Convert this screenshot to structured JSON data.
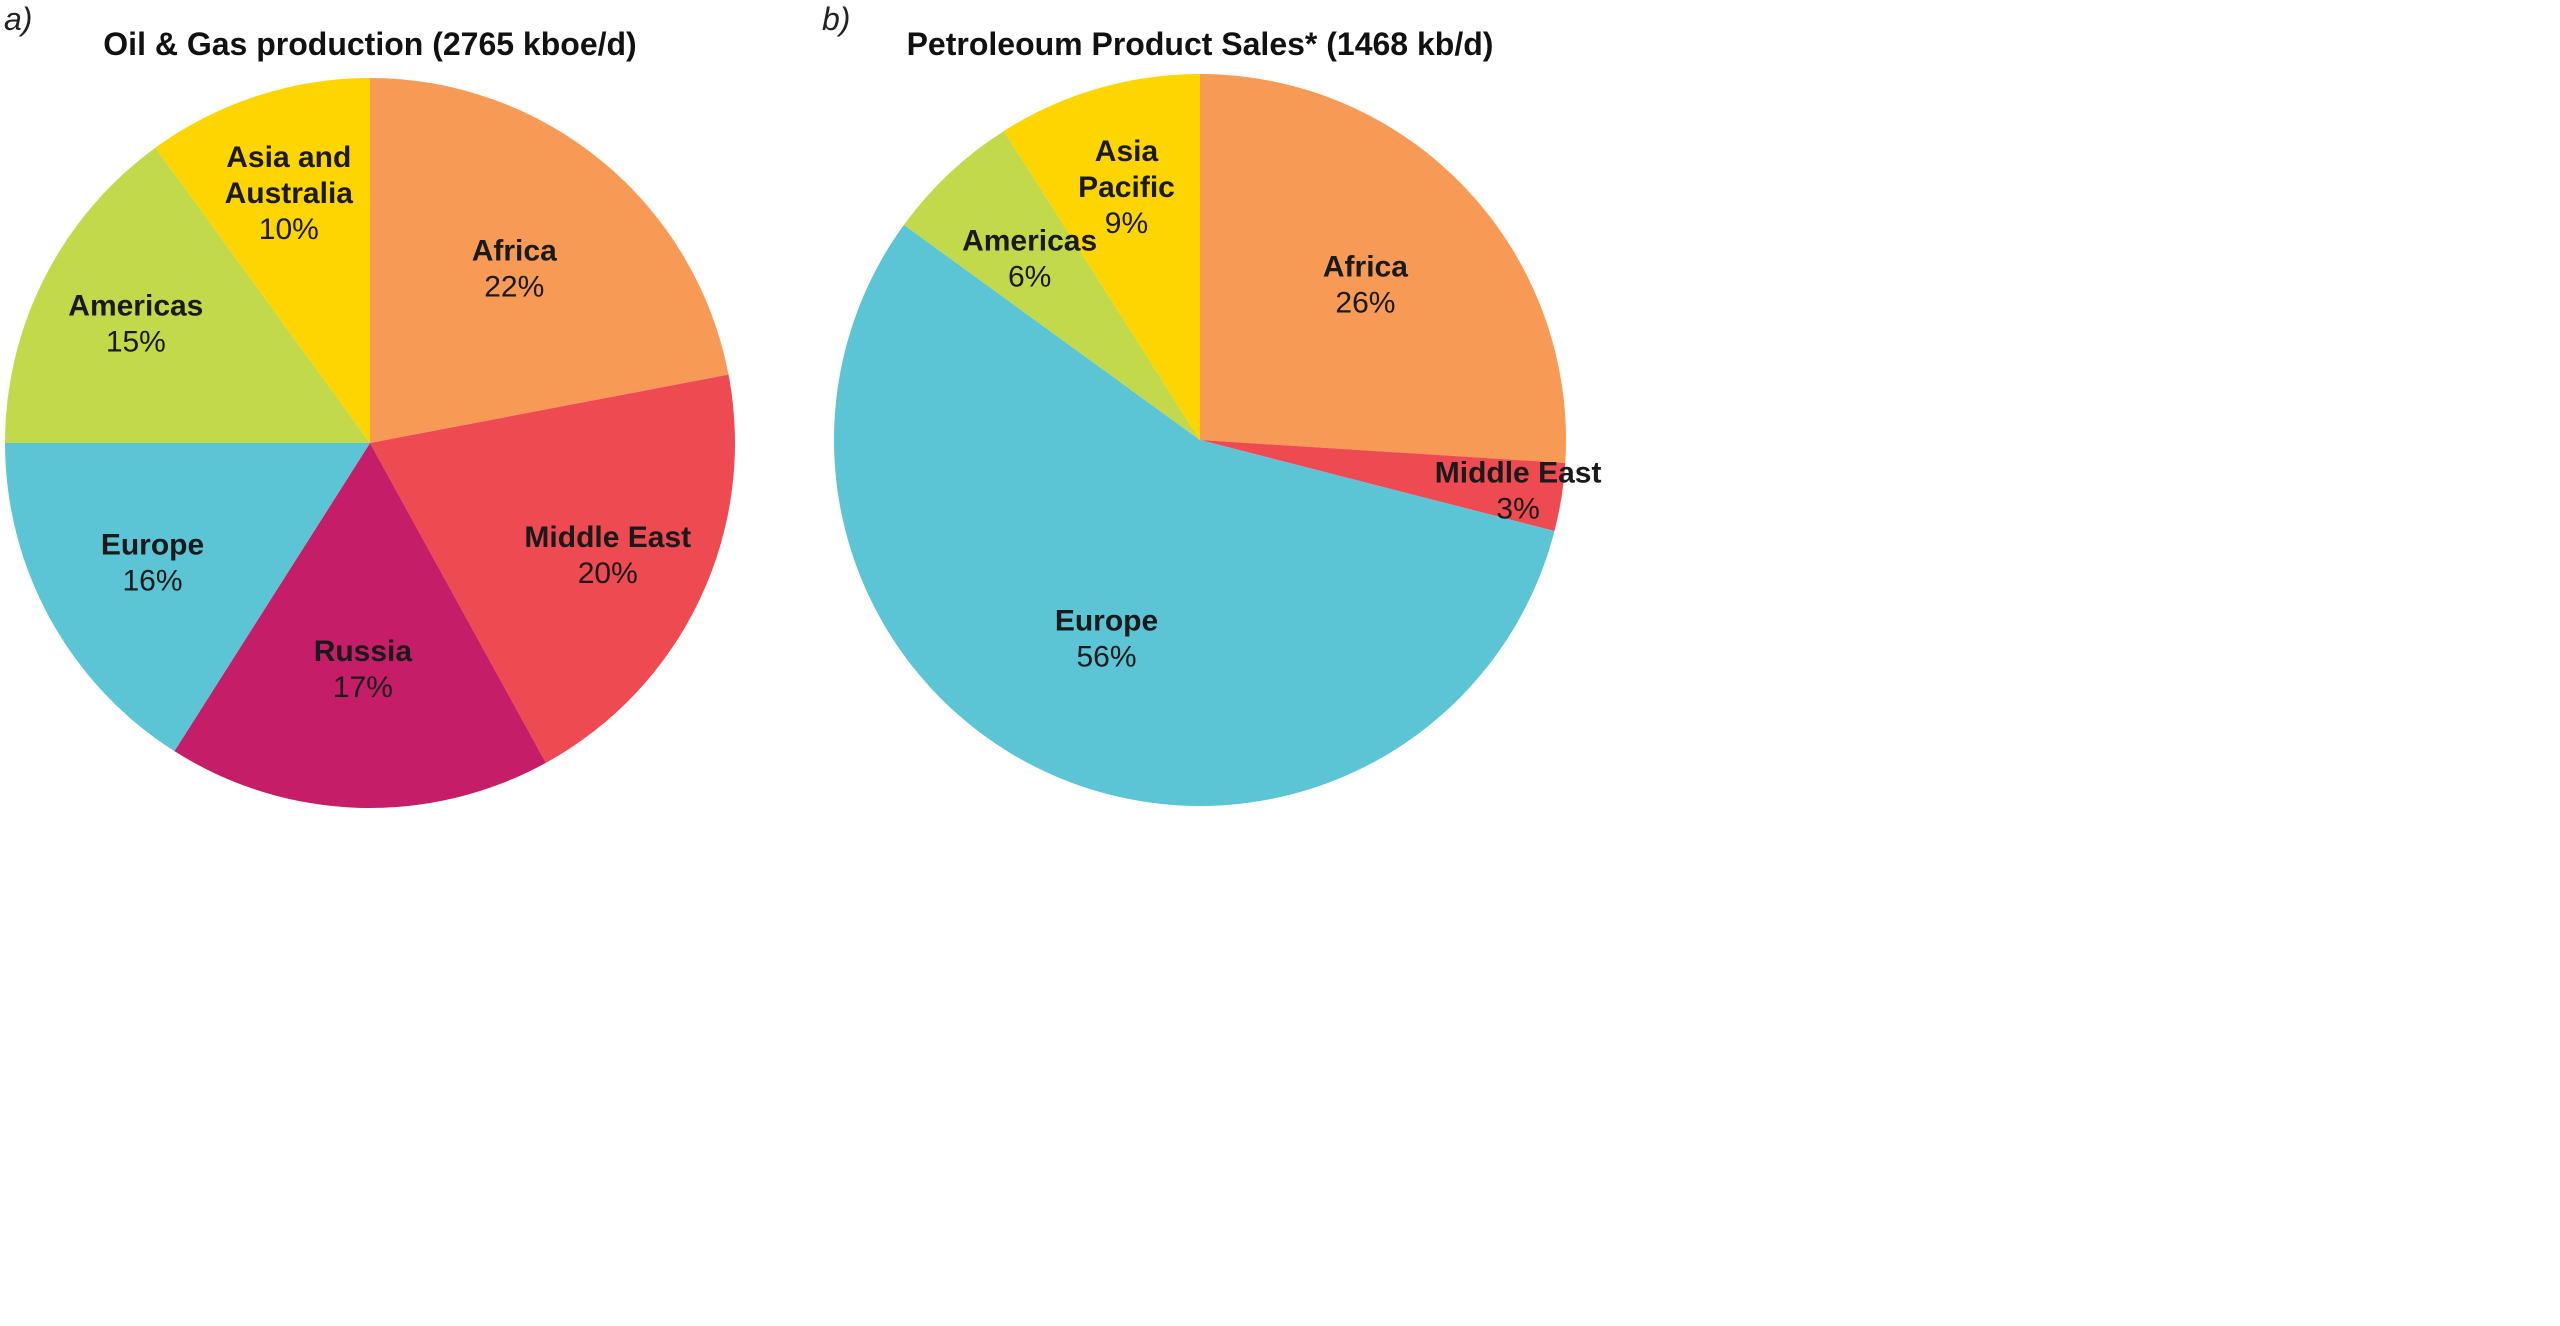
{
  "chart_data": [
    {
      "type": "pie",
      "panel": "a)",
      "title": "Oil & Gas production (2765 kboe/d)",
      "start": "12 o'clock, clockwise",
      "slices": [
        {
          "label": "Africa",
          "value": 22,
          "pct": "22%",
          "color": "#F79A55"
        },
        {
          "label": "Middle East",
          "value": 20,
          "pct": "20%",
          "color": "#EE4A52"
        },
        {
          "label": "Russia",
          "value": 17,
          "pct": "17%",
          "color": "#C51D67"
        },
        {
          "label": "Europe",
          "value": 16,
          "pct": "16%",
          "color": "#5BC5D5"
        },
        {
          "label": "Americas",
          "value": 15,
          "pct": "15%",
          "color": "#C2D94B"
        },
        {
          "label": "Asia and Australia",
          "value": 10,
          "pct": "10%",
          "color": "#FFD500"
        }
      ]
    },
    {
      "type": "pie",
      "panel": "b)",
      "title": "Petroleoum Product Sales* (1468 kb/d)",
      "start": "12 o'clock, clockwise",
      "slices": [
        {
          "label": "Africa",
          "value": 26,
          "pct": "26%",
          "color": "#F79A55"
        },
        {
          "label": "Middle East",
          "value": 3,
          "pct": "3%",
          "color": "#EE4A52"
        },
        {
          "label": "Europe",
          "value": 56,
          "pct": "56%",
          "color": "#5BC5D5"
        },
        {
          "label": "Americas",
          "value": 6,
          "pct": "6%",
          "color": "#C2D94B"
        },
        {
          "label": "Asia Pacific",
          "value": 9,
          "pct": "9%",
          "color": "#FFD500"
        }
      ]
    }
  ]
}
